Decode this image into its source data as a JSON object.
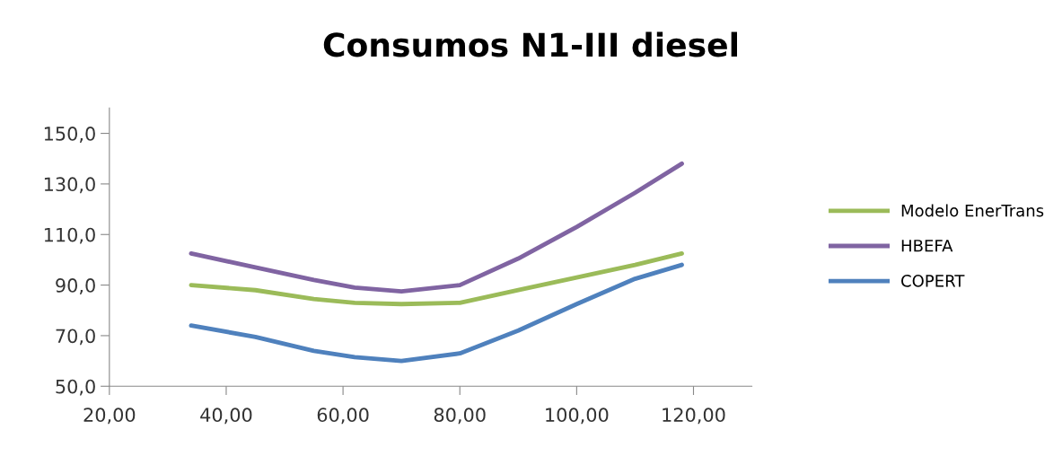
{
  "chart_data": {
    "type": "line",
    "title": "Consumos N1-III diesel",
    "x": [
      34,
      45,
      55,
      62,
      70,
      80,
      90,
      100,
      110,
      118
    ],
    "series": [
      {
        "name": "Modelo EnerTrans",
        "color": "#9bbb59",
        "values": [
          90,
          88,
          84.5,
          83,
          82.5,
          83,
          88,
          93,
          98,
          102.5
        ]
      },
      {
        "name": "HBEFA",
        "color": "#8064a2",
        "values": [
          102.5,
          97,
          92,
          89,
          87.5,
          90,
          100.5,
          113,
          126.5,
          138
        ]
      },
      {
        "name": "COPERT",
        "color": "#4f81bd",
        "values": [
          74,
          69.5,
          64,
          61.5,
          60,
          63,
          72,
          82.5,
          92.5,
          98
        ]
      }
    ],
    "xlim": [
      20,
      130
    ],
    "xticks": [
      {
        "value": 20,
        "label": "20,00"
      },
      {
        "value": 40,
        "label": "40,00"
      },
      {
        "value": 60,
        "label": "60,00"
      },
      {
        "value": 80,
        "label": "80,00"
      },
      {
        "value": 100,
        "label": "100,00"
      },
      {
        "value": 120,
        "label": "120,00"
      }
    ],
    "ylim": [
      50,
      160
    ],
    "yticks": [
      {
        "value": 50,
        "label": "50,0"
      },
      {
        "value": 70,
        "label": "70,0"
      },
      {
        "value": 90,
        "label": "90,0"
      },
      {
        "value": 110,
        "label": "110,0"
      },
      {
        "value": 130,
        "label": "130,0"
      },
      {
        "value": 150,
        "label": "150,0"
      }
    ],
    "grid": false,
    "legend": "right",
    "marker": "none",
    "line_style": "solid"
  }
}
